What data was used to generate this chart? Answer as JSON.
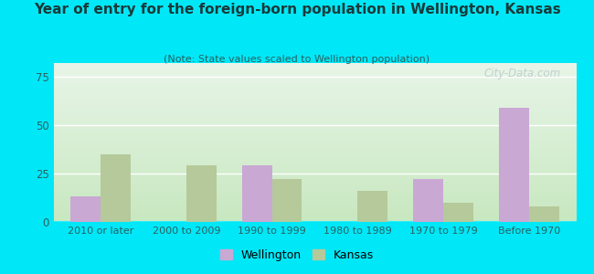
{
  "title": "Year of entry for the foreign-born population in Wellington, Kansas",
  "subtitle": "(Note: State values scaled to Wellington population)",
  "categories": [
    "2010 or later",
    "2000 to 2009",
    "1990 to 1999",
    "1980 to 1989",
    "1970 to 1979",
    "Before 1970"
  ],
  "wellington_values": [
    13,
    0,
    29,
    0,
    22,
    59
  ],
  "kansas_values": [
    35,
    29,
    22,
    16,
    10,
    8
  ],
  "wellington_color": "#c9a8d4",
  "kansas_color": "#b5c99a",
  "background_outer": "#00e8f8",
  "background_plot_top": "#e8f5e8",
  "background_plot_bottom": "#c8e8c0",
  "ylim": [
    0,
    82
  ],
  "yticks": [
    0,
    25,
    50,
    75
  ],
  "bar_width": 0.35,
  "legend_labels": [
    "Wellington",
    "Kansas"
  ],
  "watermark": "City-Data.com",
  "title_color": "#1a3a3a",
  "subtitle_color": "#2a6060",
  "tick_color": "#2a6060",
  "grid_color": "#d0d0d0"
}
